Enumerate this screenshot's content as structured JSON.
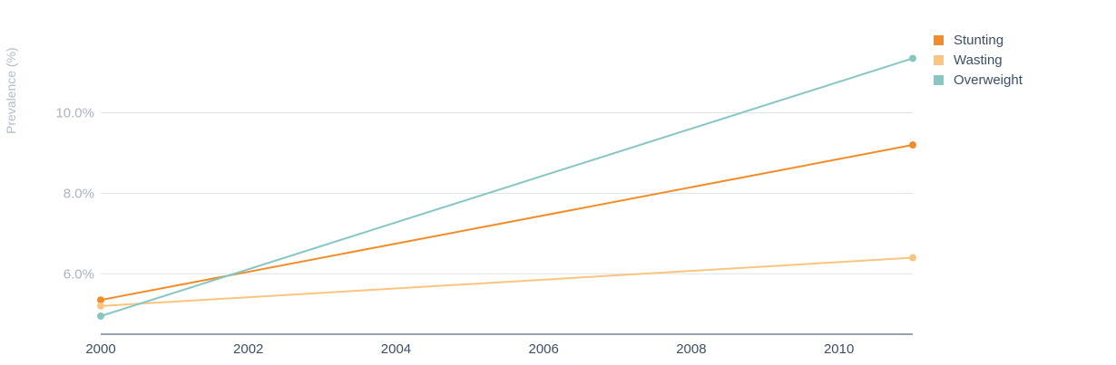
{
  "chart_data": {
    "type": "line",
    "title": "",
    "xlabel": "",
    "ylabel": "Prevalence (%)",
    "x": [
      2000,
      2011
    ],
    "xlim": [
      2000,
      2011
    ],
    "xticks": [
      2000,
      2002,
      2004,
      2006,
      2008,
      2010
    ],
    "xtick_labels": [
      "2000",
      "2002",
      "2004",
      "2006",
      "2008",
      "2010"
    ],
    "ylim": [
      4.5,
      11.9
    ],
    "yticks": [
      6,
      8,
      10
    ],
    "ytick_labels": [
      "6.0%",
      "8.0%",
      "10.0%"
    ],
    "grid": true,
    "legend_position": "top-right",
    "series": [
      {
        "name": "Stunting",
        "color": "#f28c28",
        "values": [
          5.35,
          9.2
        ]
      },
      {
        "name": "Wasting",
        "color": "#fbc47f",
        "values": [
          5.2,
          6.4
        ]
      },
      {
        "name": "Overweight",
        "color": "#86c7c3",
        "values": [
          4.95,
          11.35
        ]
      }
    ]
  }
}
